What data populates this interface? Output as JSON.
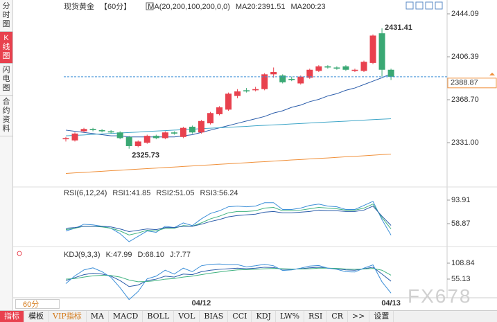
{
  "sidebar": [
    "分时图",
    "K线图",
    "闪电图",
    "合约资料"
  ],
  "period_selector": "60分",
  "toolbar": [
    "指标",
    "模板",
    "VIP指标",
    "MA",
    "MACD",
    "BOLL",
    "VOL",
    "BIAS",
    "CCI",
    "KDJ",
    "LW%",
    "RSI",
    "CR",
    ">>",
    "设置"
  ],
  "watermark": "FX678",
  "chart_data": [
    {
      "type": "candlestick",
      "title": "现货黄金",
      "subtitle": "【60分】",
      "indicator": "MA(20,200,100,200,0,0)",
      "categories": [
        null,
        null,
        null,
        null,
        null,
        null,
        null,
        null,
        null,
        null,
        null,
        null,
        null,
        null,
        null,
        "04/12",
        null,
        null,
        null,
        null,
        null,
        null,
        null,
        null,
        null,
        null,
        null,
        null,
        null,
        null,
        null,
        null,
        null,
        null,
        null,
        null,
        "04/13"
      ],
      "open": [
        2334,
        2333,
        2341,
        2343,
        2342,
        2341,
        2340,
        2336,
        2328,
        2331,
        2337,
        2335,
        2340,
        2336,
        2345,
        2340,
        2348,
        2356,
        2360,
        2372,
        2377,
        2377,
        2378,
        2391,
        2390,
        2387,
        2383,
        2388,
        2394,
        2398,
        2397,
        2398,
        2394,
        2394,
        2401,
        2427,
        2395
      ],
      "high": [
        2336,
        2340,
        2344,
        2344,
        2343,
        2342,
        2341,
        2337,
        2333,
        2338,
        2338,
        2341,
        2341,
        2345,
        2346,
        2351,
        2358,
        2363,
        2375,
        2378,
        2379,
        2380,
        2392,
        2397,
        2391,
        2389,
        2390,
        2396,
        2399,
        2399,
        2398,
        2399,
        2396,
        2403,
        2426,
        2431.41,
        2396
      ],
      "low": [
        2332,
        2332,
        2340,
        2341,
        2340,
        2339,
        2334,
        2325.73,
        2327,
        2330,
        2334,
        2334,
        2338,
        2335,
        2339,
        2339,
        2347,
        2355,
        2359,
        2370,
        2375,
        2376,
        2377,
        2388,
        2383,
        2385,
        2382,
        2387,
        2393,
        2396,
        2395,
        2394,
        2393,
        2393,
        2400,
        2389,
        2386
      ],
      "close": [
        2335,
        2339,
        2343,
        2342,
        2341,
        2340,
        2335,
        2328,
        2332,
        2337,
        2335,
        2340,
        2339,
        2344,
        2340,
        2350,
        2357,
        2362,
        2374,
        2376,
        2376,
        2378,
        2391,
        2393,
        2384,
        2386,
        2389,
        2395,
        2398,
        2397,
        2396,
        2395,
        2395,
        2402,
        2425,
        2395,
        2388.87
      ],
      "up_color": "#e8414e",
      "down_color": "#3aa874",
      "series": [
        {
          "name": "MA20:2391.51",
          "color": "#2a5caa",
          "values": [
            2342,
            2341,
            2340,
            2339,
            2338,
            2337,
            2337,
            2336,
            2336,
            2336,
            2336,
            2336,
            2336,
            2337,
            2338,
            2340,
            2342,
            2344,
            2346,
            2348,
            2350,
            2352,
            2354,
            2357,
            2359,
            2362,
            2364,
            2367,
            2369,
            2372,
            2374,
            2377,
            2379,
            2382,
            2385,
            2388,
            2391.51
          ]
        },
        {
          "color": "#3fa6c8",
          "values": [
            2337.0,
            2337.4,
            2337.8,
            2338.3,
            2338.7,
            2339.1,
            2339.5,
            2339.9,
            2340.3,
            2340.8,
            2341.2,
            2341.6,
            2342.0,
            2342.4,
            2342.8,
            2343.3,
            2343.7,
            2344.1,
            2344.5,
            2344.9,
            2345.3,
            2345.8,
            2346.2,
            2346.6,
            2347.0,
            2347.4,
            2347.8,
            2348.3,
            2348.7,
            2349.1,
            2349.5,
            2349.9,
            2350.3,
            2350.8,
            2351.2,
            2351.6,
            2352.0
          ]
        },
        {
          "name": "MA200:23",
          "color": "#f0903a",
          "values": [
            2304.0,
            2304.5,
            2304.9,
            2305.4,
            2305.9,
            2306.4,
            2306.8,
            2307.3,
            2307.8,
            2308.2,
            2308.7,
            2309.2,
            2309.6,
            2310.1,
            2310.6,
            2311.1,
            2311.5,
            2312.0,
            2312.5,
            2312.9,
            2313.4,
            2313.9,
            2314.3,
            2314.8,
            2315.3,
            2315.8,
            2316.2,
            2316.7,
            2317.2,
            2317.6,
            2318.1,
            2318.6,
            2319.0,
            2319.5,
            2320.0,
            2320.5,
            2321.0
          ]
        }
      ],
      "ylim": [
        2293.33,
        2451.38
      ],
      "yticks": [
        2444.09,
        2406.39,
        {
          "value": 2368.7,
          "label": "2368.70"
        },
        {
          "value": 2331,
          "label": "2331.00"
        }
      ],
      "high_color": "#e8414e",
      "low_color": "#3aa874",
      "last_color": "#f0903a"
    },
    {
      "type": "line",
      "title": "RSI(6,12,24)",
      "series": [
        {
          "name": "RSI1:41.85",
          "color": "#3c8fd8",
          "values": [
            48,
            52,
            58,
            57,
            55,
            52,
            44,
            32,
            40,
            48,
            46,
            55,
            53,
            60,
            56,
            66,
            74,
            78,
            84,
            85,
            84,
            85,
            90,
            90,
            80,
            80,
            82,
            86,
            88,
            85,
            84,
            80,
            80,
            86,
            92,
            65,
            41.85
          ]
        },
        {
          "name": "RSI2:51.05",
          "color": "#3fb27f",
          "values": [
            50,
            52,
            55,
            55,
            54,
            52,
            48,
            42,
            45,
            49,
            48,
            52,
            52,
            56,
            55,
            60,
            66,
            70,
            75,
            77,
            77,
            78,
            82,
            83,
            78,
            78,
            79,
            81,
            83,
            82,
            81,
            79,
            79,
            82,
            88,
            68,
            51.05
          ]
        },
        {
          "name": "RSI3:56.24",
          "color": "#2a5caa",
          "values": [
            52,
            53,
            55,
            55,
            55,
            54,
            51,
            47,
            49,
            51,
            50,
            53,
            53,
            55,
            55,
            58,
            62,
            65,
            69,
            71,
            72,
            73,
            76,
            77,
            75,
            75,
            76,
            77,
            79,
            78,
            78,
            77,
            77,
            79,
            85,
            70,
            56.24
          ]
        }
      ],
      "ylim": [
        28.97,
        108.3
      ],
      "yticks": [
        93.91,
        58.87
      ]
    },
    {
      "type": "line",
      "title": "KDJ(9,3,3)",
      "series": [
        {
          "name": "K:47.99",
          "color": "#2a5caa",
          "values": [
            50,
            60,
            70,
            75,
            72,
            65,
            50,
            30,
            35,
            50,
            55,
            65,
            62,
            72,
            70,
            80,
            85,
            88,
            90,
            92,
            90,
            92,
            95,
            94,
            88,
            88,
            90,
            93,
            95,
            92,
            90,
            86,
            85,
            90,
            95,
            72,
            47.99
          ]
        },
        {
          "name": "D:68.10",
          "color": "#3fb27f",
          "values": [
            55,
            57,
            62,
            66,
            68,
            67,
            62,
            52,
            46,
            47,
            50,
            55,
            57,
            62,
            65,
            70,
            75,
            79,
            83,
            86,
            87,
            88,
            90,
            91,
            90,
            89,
            89,
            90,
            92,
            92,
            91,
            89,
            88,
            89,
            91,
            85,
            68.1
          ]
        },
        {
          "name": "J:7.77",
          "color": "#3c8fd8",
          "values": [
            40,
            66,
            86,
            93,
            80,
            61,
            26,
            -14,
            13,
            56,
            65,
            85,
            72,
            92,
            80,
            100,
            105,
            106,
            104,
            104,
            96,
            100,
            105,
            100,
            84,
            86,
            92,
            99,
            101,
            92,
            88,
            80,
            79,
            92,
            103,
            46,
            7.77
          ]
        }
      ],
      "ylim": [
        -7.9,
        143.9
      ],
      "yticks": [
        108.84,
        55.13
      ]
    }
  ]
}
